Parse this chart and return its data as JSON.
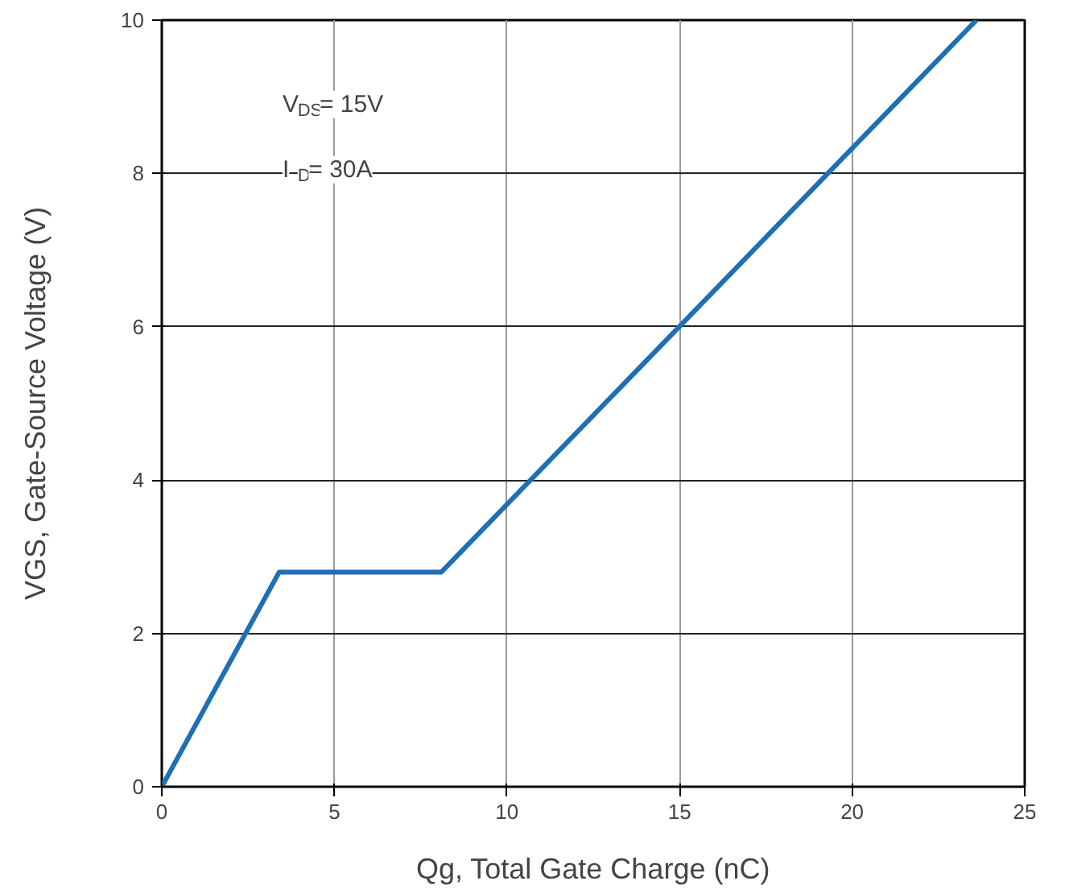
{
  "chart_data": {
    "type": "line",
    "xlabel": "Qg, Total Gate Charge (nC)",
    "ylabel": "VGS, Gate-Source Voltage (V)",
    "x": [
      0,
      3.4,
      8.1,
      23.6
    ],
    "series": [
      {
        "color": "#1f6fb4",
        "values": [
          0,
          2.8,
          2.8,
          10
        ]
      }
    ],
    "xlim": [
      0,
      25
    ],
    "xticks": [
      0,
      5,
      10,
      15,
      20,
      25
    ],
    "ylim": [
      0,
      10
    ],
    "yticks": [
      0,
      2,
      4,
      6,
      8,
      10
    ],
    "grid": true,
    "marker": "none",
    "line_style": "solid",
    "annotations": [
      "V$_{DS}$= 15V",
      "I$_{D}$= 30A"
    ]
  }
}
